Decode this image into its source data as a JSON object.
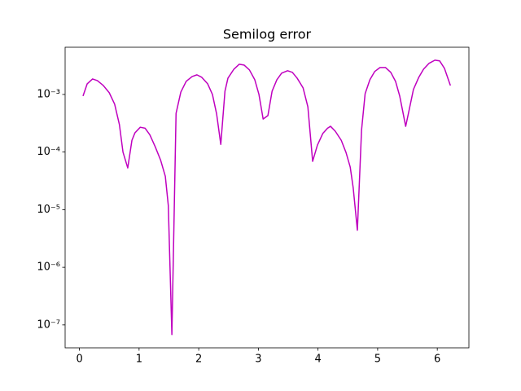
{
  "chart_data": {
    "type": "line",
    "title": "Semilog error",
    "yscale": "log",
    "x": [
      0.06,
      0.13,
      0.22,
      0.3,
      0.4,
      0.5,
      0.59,
      0.67,
      0.73,
      0.81,
      0.88,
      0.93,
      1.02,
      1.1,
      1.18,
      1.27,
      1.36,
      1.44,
      1.49,
      1.55,
      1.62,
      1.7,
      1.79,
      1.89,
      1.97,
      2.05,
      2.15,
      2.23,
      2.3,
      2.37,
      2.44,
      2.49,
      2.59,
      2.68,
      2.76,
      2.85,
      2.94,
      3.01,
      3.08,
      3.16,
      3.23,
      3.31,
      3.39,
      3.49,
      3.57,
      3.65,
      3.75,
      3.83,
      3.91,
      3.99,
      4.08,
      4.16,
      4.21,
      4.29,
      4.39,
      4.47,
      4.54,
      4.59,
      4.66,
      4.73,
      4.79,
      4.87,
      4.95,
      5.04,
      5.13,
      5.22,
      5.3,
      5.37,
      5.47,
      5.52,
      5.6,
      5.69,
      5.77,
      5.86,
      5.96,
      6.04,
      6.12,
      6.22
    ],
    "series": [
      {
        "color": "#bf00bf",
        "values": [
          0.00094,
          0.00153,
          0.00186,
          0.00174,
          0.00143,
          0.00107,
          0.00068,
          0.0003,
          0.0001,
          5.3e-05,
          0.00016,
          0.000215,
          0.00027,
          0.00026,
          0.0002,
          0.000124,
          7.3e-05,
          3.8e-05,
          1.18e-05,
          6.8e-08,
          0.00047,
          0.0011,
          0.00169,
          0.00205,
          0.00219,
          0.00199,
          0.00153,
          0.001,
          0.00046,
          0.000136,
          0.00114,
          0.00192,
          0.00275,
          0.00335,
          0.00324,
          0.00267,
          0.0018,
          0.001,
          0.000375,
          0.00043,
          0.00114,
          0.0018,
          0.00234,
          0.00258,
          0.00242,
          0.00192,
          0.0013,
          0.00061,
          6.9e-05,
          0.000132,
          0.00021,
          0.00026,
          0.00028,
          0.00023,
          0.00016,
          9.8e-05,
          5.5e-05,
          2.4e-05,
          4.4e-06,
          0.00024,
          0.00103,
          0.0018,
          0.0025,
          0.00294,
          0.00294,
          0.00242,
          0.00169,
          0.00094,
          0.00028,
          0.00049,
          0.00122,
          0.00199,
          0.00275,
          0.00346,
          0.00394,
          0.00382,
          0.00284,
          0.00143
        ]
      }
    ],
    "xlim": [
      -0.24,
      6.53
    ],
    "xticks": [
      0,
      1,
      2,
      3,
      4,
      5,
      6
    ],
    "ylim": [
      4e-08,
      0.0066
    ],
    "yticks": [
      {
        "value": 1e-07,
        "label": "10⁻⁷"
      },
      {
        "value": 1e-06,
        "label": "10⁻⁶"
      },
      {
        "value": 1e-05,
        "label": "10⁻⁵"
      },
      {
        "value": 0.0001,
        "label": "10⁻⁴"
      },
      {
        "value": 0.001,
        "label": "10⁻³"
      }
    ]
  }
}
